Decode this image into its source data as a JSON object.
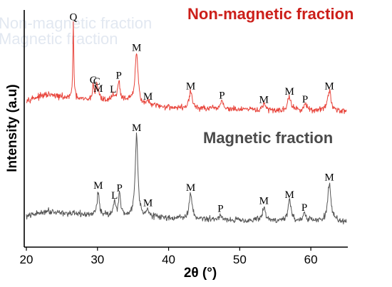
{
  "chart_data": {
    "type": "line",
    "xlabel": "2θ (°)",
    "ylabel": "Intensity (a.u)",
    "xlim": [
      20,
      65
    ],
    "xticks": [
      20,
      30,
      40,
      50,
      60
    ],
    "grid": false,
    "ghost_text": [
      "Non-magnetic fraction",
      "Magnetic fraction"
    ],
    "series": [
      {
        "name": "Non-magnetic fraction",
        "color": "#e8443b",
        "title_color": "#cc1f1a",
        "baseline": [
          [
            20,
            20
          ],
          [
            23,
            27
          ],
          [
            26,
            22
          ],
          [
            29,
            19
          ],
          [
            32,
            19
          ],
          [
            34,
            20
          ],
          [
            36,
            13
          ],
          [
            38,
            11
          ],
          [
            42,
            8
          ],
          [
            46,
            7
          ],
          [
            50,
            6
          ],
          [
            55,
            5
          ],
          [
            60,
            5
          ],
          [
            65,
            4
          ]
        ],
        "noise": 3,
        "peaks": [
          {
            "x": 26.6,
            "height": 108,
            "width": 0.08,
            "label": "Q"
          },
          {
            "x": 29.4,
            "height": 22,
            "width": 0.14,
            "label": "C"
          },
          {
            "x": 29.9,
            "height": 20,
            "width": 0.12,
            "label": "C"
          },
          {
            "x": 30.1,
            "height": 10,
            "width": 0.2,
            "label": "M"
          },
          {
            "x": 32.2,
            "height": 9,
            "width": 0.18,
            "label": "L"
          },
          {
            "x": 33.0,
            "height": 28,
            "width": 0.17,
            "label": "P"
          },
          {
            "x": 35.5,
            "height": 72,
            "width": 0.24,
            "label": "M"
          },
          {
            "x": 37.1,
            "height": 6,
            "width": 0.18,
            "label": "M"
          },
          {
            "x": 43.1,
            "height": 25,
            "width": 0.24,
            "label": "M"
          },
          {
            "x": 47.5,
            "height": 13,
            "width": 0.22,
            "label": "P"
          },
          {
            "x": 53.4,
            "height": 8,
            "width": 0.24,
            "label": "M"
          },
          {
            "x": 57.0,
            "height": 20,
            "width": 0.26,
            "label": "M"
          },
          {
            "x": 59.2,
            "height": 9,
            "width": 0.22,
            "label": "P"
          },
          {
            "x": 62.6,
            "height": 28,
            "width": 0.28,
            "label": "M"
          }
        ]
      },
      {
        "name": "Magnetic fraction",
        "color": "#555555",
        "title_color": "#4a4a4a",
        "baseline": [
          [
            20,
            8
          ],
          [
            23,
            16
          ],
          [
            26,
            12
          ],
          [
            29,
            10
          ],
          [
            32,
            10
          ],
          [
            36,
            8
          ],
          [
            40,
            6
          ],
          [
            45,
            4
          ],
          [
            50,
            3
          ],
          [
            55,
            2
          ],
          [
            60,
            2
          ],
          [
            65,
            1
          ]
        ],
        "noise": 3,
        "peaks": [
          {
            "x": 30.1,
            "height": 33,
            "width": 0.18,
            "label": "M"
          },
          {
            "x": 32.4,
            "height": 19,
            "width": 0.18,
            "label": "L"
          },
          {
            "x": 33.1,
            "height": 30,
            "width": 0.17,
            "label": "P"
          },
          {
            "x": 35.5,
            "height": 116,
            "width": 0.22,
            "label": "M"
          },
          {
            "x": 37.1,
            "height": 11,
            "width": 0.18,
            "label": "M"
          },
          {
            "x": 43.1,
            "height": 35,
            "width": 0.24,
            "label": "M"
          },
          {
            "x": 47.3,
            "height": 7,
            "width": 0.22,
            "label": "P"
          },
          {
            "x": 53.4,
            "height": 19,
            "width": 0.24,
            "label": "M"
          },
          {
            "x": 57.0,
            "height": 28,
            "width": 0.26,
            "label": "M"
          },
          {
            "x": 59.1,
            "height": 10,
            "width": 0.22,
            "label": "P"
          },
          {
            "x": 62.6,
            "height": 53,
            "width": 0.26,
            "label": "M"
          }
        ]
      }
    ]
  }
}
